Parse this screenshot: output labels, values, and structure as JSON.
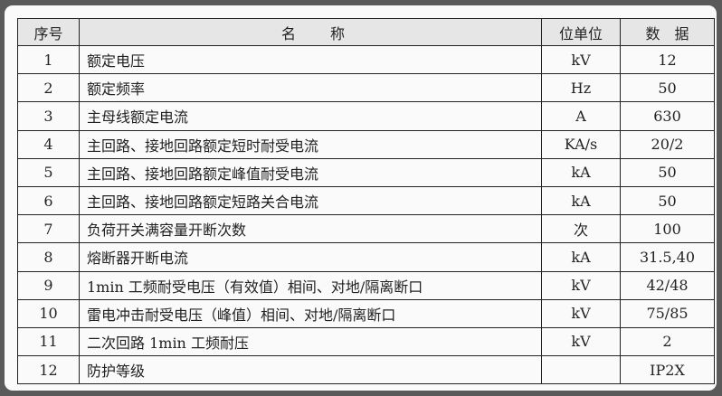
{
  "headers": {
    "no": "序号",
    "name": "名　　称",
    "unit": "位单位",
    "value": "数　据"
  },
  "rows": [
    {
      "no": "1",
      "name": "额定电压",
      "unit": "kV",
      "value": "12"
    },
    {
      "no": "2",
      "name": "额定频率",
      "unit": "Hz",
      "value": "50"
    },
    {
      "no": "3",
      "name": "主母线额定电流",
      "unit": "A",
      "value": "630"
    },
    {
      "no": "4",
      "name": "主回路、接地回路额定短时耐受电流",
      "unit": "KA/s",
      "value": "20/2"
    },
    {
      "no": "5",
      "name": "主回路、接地回路额定峰值耐受电流",
      "unit": "kA",
      "value": "50"
    },
    {
      "no": "6",
      "name": "主回路、接地回路额定短路关合电流",
      "unit": "kA",
      "value": "50"
    },
    {
      "no": "7",
      "name": "负荷开关满容量开断次数",
      "unit": "次",
      "value": "100"
    },
    {
      "no": "8",
      "name": "熔断器开断电流",
      "unit": "kA",
      "value": "31.5,40"
    },
    {
      "no": "9",
      "name": "1min 工频耐受电压（有效值）相间、对地/隔离断口",
      "unit": "kV",
      "value": "42/48"
    },
    {
      "no": "10",
      "name": "雷电冲击耐受电压（峰值）相间、对地/隔离断口",
      "unit": "kV",
      "value": "75/85"
    },
    {
      "no": "11",
      "name": "二次回路 1min 工频耐压",
      "unit": "kV",
      "value": "2"
    },
    {
      "no": "12",
      "name": "防护等级",
      "unit": "",
      "value": "IP2X"
    }
  ]
}
